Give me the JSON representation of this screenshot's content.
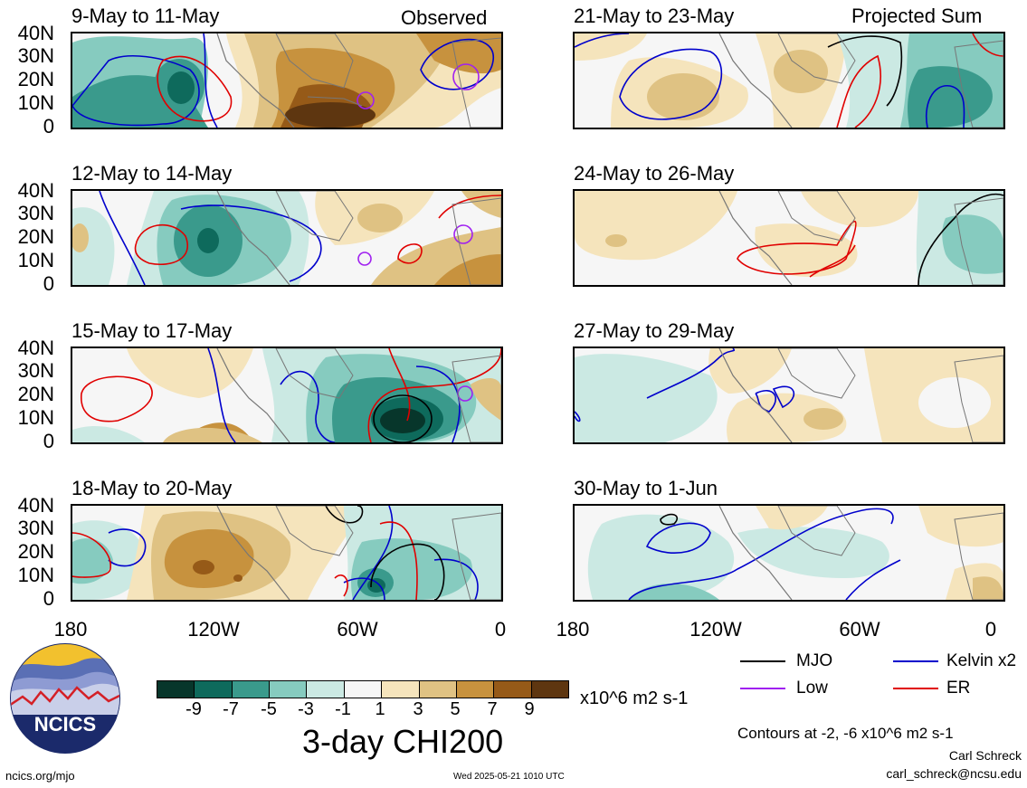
{
  "panels_left": [
    {
      "title": "9-May to 11-May",
      "tag": "Observed"
    },
    {
      "title": "12-May to 14-May",
      "tag": ""
    },
    {
      "title": "15-May to 17-May",
      "tag": ""
    },
    {
      "title": "18-May to 20-May",
      "tag": ""
    }
  ],
  "panels_right": [
    {
      "title": "21-May to 23-May",
      "tag": "Projected Sum"
    },
    {
      "title": "24-May to 26-May",
      "tag": ""
    },
    {
      "title": "27-May to 29-May",
      "tag": ""
    },
    {
      "title": "30-May to 1-Jun",
      "tag": ""
    }
  ],
  "lat_labels": [
    "40N",
    "30N",
    "20N",
    "10N",
    "0"
  ],
  "lon_labels": [
    "180",
    "120W",
    "60W",
    "0"
  ],
  "colorbar": {
    "colors": [
      "#07362b",
      "#0e6a5c",
      "#3a9a8c",
      "#86cbbf",
      "#cbe9e3",
      "#f6f6f6",
      "#f5e4bc",
      "#dfc283",
      "#c7923e",
      "#965a18",
      "#5e3610"
    ],
    "labels": [
      "-9",
      "-7",
      "-5",
      "-3",
      "-1",
      "1",
      "3",
      "5",
      "7",
      "9"
    ],
    "units": "x10^6 m2 s-1",
    "title": "3-day CHI200"
  },
  "legend": {
    "mjo": {
      "label": "MJO",
      "color": "#000000"
    },
    "kelvin": {
      "label": "Kelvin x2",
      "color": "#0000cc"
    },
    "low": {
      "label": "Low",
      "color": "#a020f0"
    },
    "er": {
      "label": "ER",
      "color": "#e00000"
    }
  },
  "contours_note": "Contours at -2, -6 x10^6 m2 s-1",
  "footer": {
    "site": "ncics.org/mjo",
    "timestamp": "Wed 2025-05-21 1010 UTC",
    "author": "Carl Schreck",
    "email": "carl_schreck@ncsu.edu",
    "logo_text": "NCICS"
  }
}
